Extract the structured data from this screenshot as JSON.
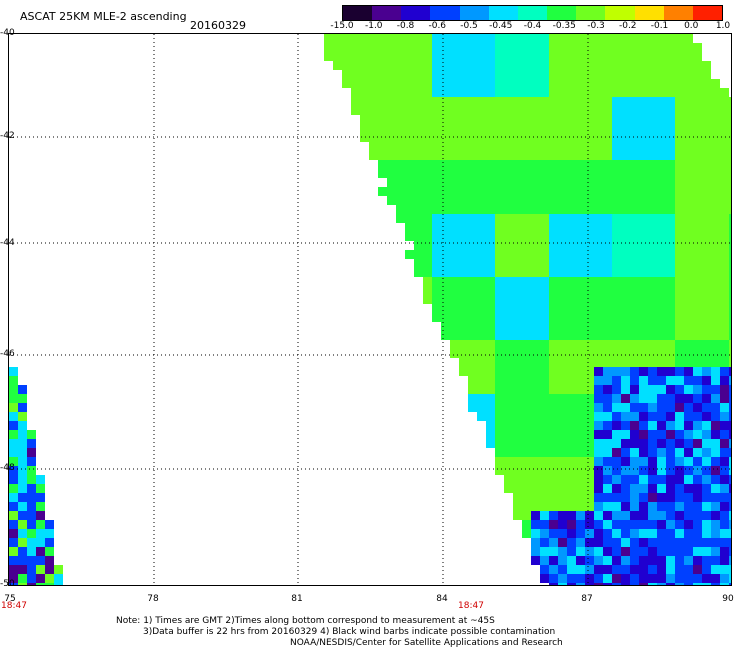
{
  "header": {
    "title": "ASCAT 25KM MLE-2 ascending",
    "date": "20160329"
  },
  "colorbar": {
    "labels": [
      "-15.0",
      "-1.0",
      "-0.8",
      "-0.6",
      "-0.5",
      "-0.45",
      "-0.4",
      "-0.35",
      "-0.3",
      "-0.2",
      "-0.1",
      "0.0",
      "1.0"
    ],
    "colors": [
      "#1a0030",
      "#4a0090",
      "#2000d0",
      "#0040ff",
      "#0098ff",
      "#00e0ff",
      "#00ffc0",
      "#20ff40",
      "#70ff20",
      "#c0ff00",
      "#ffe000",
      "#ff8000",
      "#ff2000"
    ]
  },
  "axes": {
    "lat_labels": [
      "-40",
      "-42",
      "-44",
      "-46",
      "-48",
      "-50"
    ],
    "lon_labels": [
      "75",
      "78",
      "81",
      "84",
      "87",
      "90"
    ],
    "time_labels": [
      "18:47",
      "18:47"
    ]
  },
  "footer": {
    "note_line1": "Note: 1) Times are GMT 2)Times along bottom correspond to measurement at ~45S",
    "note_line2": "3)Data buffer is 22 hrs from 20160329 4) Black wind barbs indicate possible contamination",
    "credit": "NOAA/NESDIS/Center for Satellite Applications and Research"
  }
}
